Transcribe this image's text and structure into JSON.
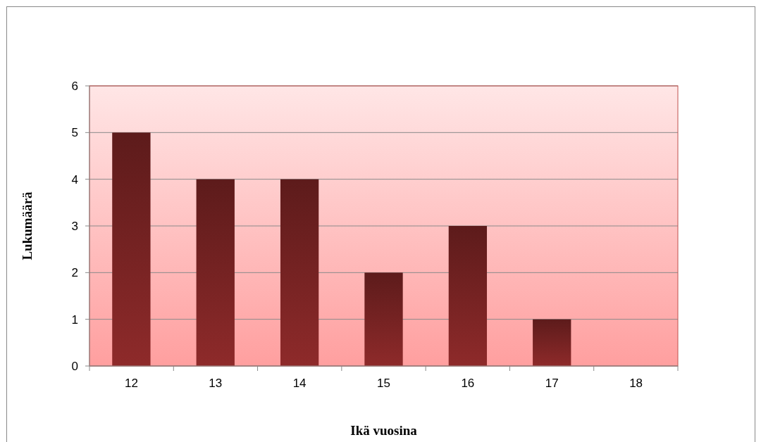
{
  "chart_data": {
    "type": "bar",
    "xlabel": "Ikä vuosina",
    "ylabel": "Lukumäärä",
    "categories": [
      "12",
      "13",
      "14",
      "15",
      "16",
      "17",
      "18"
    ],
    "values": [
      5,
      4,
      4,
      2,
      3,
      1,
      0
    ],
    "color": "#8e2a2a",
    "ylim": [
      0,
      6
    ],
    "yticks": [
      0,
      1,
      2,
      3,
      4,
      5,
      6
    ],
    "grid": "y"
  }
}
